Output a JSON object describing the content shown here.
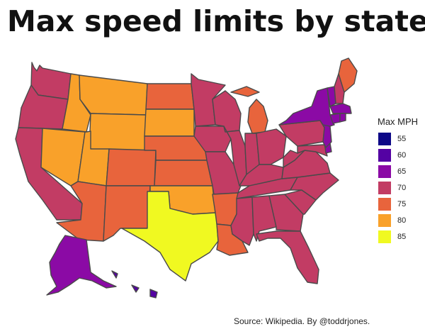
{
  "title": "Max speed limits by state",
  "legend": {
    "title": "Max MPH",
    "items": [
      {
        "value": "55",
        "color": "#0d0887"
      },
      {
        "value": "60",
        "color": "#5402a3"
      },
      {
        "value": "65",
        "color": "#8b0aa5"
      },
      {
        "value": "70",
        "color": "#c23c64"
      },
      {
        "value": "75",
        "color": "#e8643c"
      },
      {
        "value": "80",
        "color": "#f9a12a"
      },
      {
        "value": "85",
        "color": "#f0f921"
      }
    ]
  },
  "states": [
    {
      "code": "WA",
      "mph": 70
    },
    {
      "code": "OR",
      "mph": 70
    },
    {
      "code": "CA",
      "mph": 70
    },
    {
      "code": "NV",
      "mph": 80
    },
    {
      "code": "ID",
      "mph": 80
    },
    {
      "code": "MT",
      "mph": 80
    },
    {
      "code": "WY",
      "mph": 80
    },
    {
      "code": "UT",
      "mph": 80
    },
    {
      "code": "AZ",
      "mph": 75
    },
    {
      "code": "CO",
      "mph": 75
    },
    {
      "code": "NM",
      "mph": 75
    },
    {
      "code": "ND",
      "mph": 75
    },
    {
      "code": "SD",
      "mph": 80
    },
    {
      "code": "NE",
      "mph": 75
    },
    {
      "code": "KS",
      "mph": 75
    },
    {
      "code": "OK",
      "mph": 80
    },
    {
      "code": "TX",
      "mph": 85
    },
    {
      "code": "MN",
      "mph": 70
    },
    {
      "code": "IA",
      "mph": 70
    },
    {
      "code": "MO",
      "mph": 70
    },
    {
      "code": "AR",
      "mph": 75
    },
    {
      "code": "LA",
      "mph": 75
    },
    {
      "code": "WI",
      "mph": 70
    },
    {
      "code": "IL",
      "mph": 70
    },
    {
      "code": "MI",
      "mph": 75
    },
    {
      "code": "IN",
      "mph": 70
    },
    {
      "code": "OH",
      "mph": 70
    },
    {
      "code": "KY",
      "mph": 70
    },
    {
      "code": "TN",
      "mph": 70
    },
    {
      "code": "MS",
      "mph": 70
    },
    {
      "code": "AL",
      "mph": 70
    },
    {
      "code": "GA",
      "mph": 70
    },
    {
      "code": "FL",
      "mph": 70
    },
    {
      "code": "SC",
      "mph": 70
    },
    {
      "code": "NC",
      "mph": 70
    },
    {
      "code": "VA",
      "mph": 70
    },
    {
      "code": "WV",
      "mph": 70
    },
    {
      "code": "PA",
      "mph": 70
    },
    {
      "code": "NY",
      "mph": 65
    },
    {
      "code": "VT",
      "mph": 65
    },
    {
      "code": "NH",
      "mph": 70
    },
    {
      "code": "ME",
      "mph": 75
    },
    {
      "code": "MA",
      "mph": 65
    },
    {
      "code": "CT",
      "mph": 65
    },
    {
      "code": "RI",
      "mph": 65
    },
    {
      "code": "NJ",
      "mph": 65
    },
    {
      "code": "DE",
      "mph": 65
    },
    {
      "code": "MD",
      "mph": 70
    },
    {
      "code": "AK",
      "mph": 65
    },
    {
      "code": "HI",
      "mph": 60
    }
  ],
  "source": "Source: Wikipedia. By @toddrjones."
}
